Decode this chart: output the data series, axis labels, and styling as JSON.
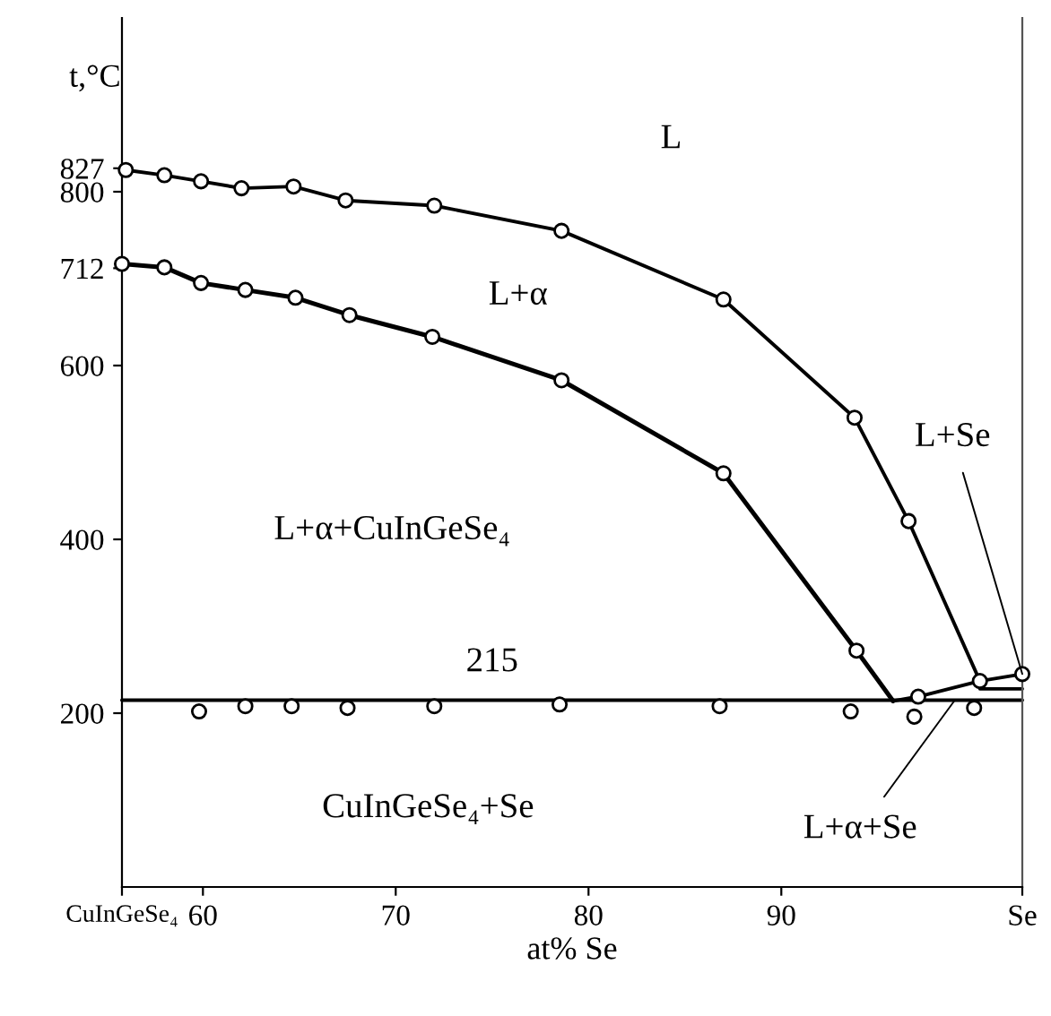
{
  "chart_data": {
    "type": "line",
    "xlabel": "at% Se",
    "ylabel": "t,°C",
    "xlim": [
      55.8,
      102.5
    ],
    "xticks": [
      {
        "value": 55.8,
        "label": "CuInGeSe₄"
      },
      60,
      70,
      80,
      90,
      {
        "value": 102.5,
        "label": "Se"
      }
    ],
    "ylim": [
      0,
      1000
    ],
    "yticks": [
      200,
      400,
      600,
      712,
      800,
      827
    ],
    "series": [
      {
        "color": "#000000",
        "x": [
          56.0,
          58.0,
          59.9,
          62.0,
          64.7,
          67.4,
          72.0,
          78.6,
          87.0,
          93.8,
          96.6,
          100.3
        ],
        "values": [
          825,
          819,
          812,
          804,
          806,
          790,
          784,
          755,
          676,
          540,
          421,
          237
        ]
      },
      {
        "color": "#000000",
        "x": [
          55.8,
          58.0,
          59.9,
          62.2,
          64.8,
          67.6,
          71.9,
          78.6,
          87.0,
          93.9,
          95.8
        ],
        "values": [
          717,
          713,
          695,
          687,
          678,
          658,
          633,
          583,
          476,
          272,
          214
        ]
      },
      {
        "color": "#000000",
        "x": [
          55.8,
          102.5
        ],
        "values": [
          215,
          215
        ]
      },
      {
        "color": "#000000",
        "x": [
          95.8,
          97.1,
          100.3,
          102.5
        ],
        "values": [
          214,
          219,
          237,
          245
        ]
      },
      {
        "color": "#000000",
        "x": [
          100.3,
          102.5
        ],
        "values": [
          228,
          228
        ]
      },
      {
        "type": "scatter",
        "color": "#000000",
        "marker": "circle",
        "x": [
          56.0,
          58.0,
          59.9,
          62.0,
          64.7,
          67.4,
          72.0,
          78.6,
          87.0,
          93.8,
          96.6,
          100.3,
          102.5,
          55.8,
          58.0,
          59.9,
          62.2,
          64.8,
          67.6,
          71.9,
          78.6,
          87.0,
          93.9,
          97.1,
          59.8,
          62.2,
          64.6,
          67.5,
          72.0,
          78.5,
          86.8,
          93.6,
          96.9,
          100.0
        ],
        "values": [
          825,
          819,
          812,
          804,
          806,
          790,
          784,
          755,
          676,
          540,
          421,
          237,
          245,
          717,
          713,
          695,
          687,
          678,
          658,
          633,
          583,
          476,
          272,
          219,
          202,
          208,
          208,
          206,
          208,
          210,
          208,
          202,
          196,
          206
        ]
      }
    ],
    "annotations": [
      "L",
      "L+α",
      "L+α+CuInGeSe₄",
      {
        "text": "215",
        "x": 75.0,
        "y": 215
      },
      "CuInGeSe₄+Se",
      {
        "text": "L+Se",
        "x": 102.5,
        "y": 245
      },
      {
        "text": "L+α+Se",
        "x": 99.0,
        "y": 215
      }
    ]
  }
}
